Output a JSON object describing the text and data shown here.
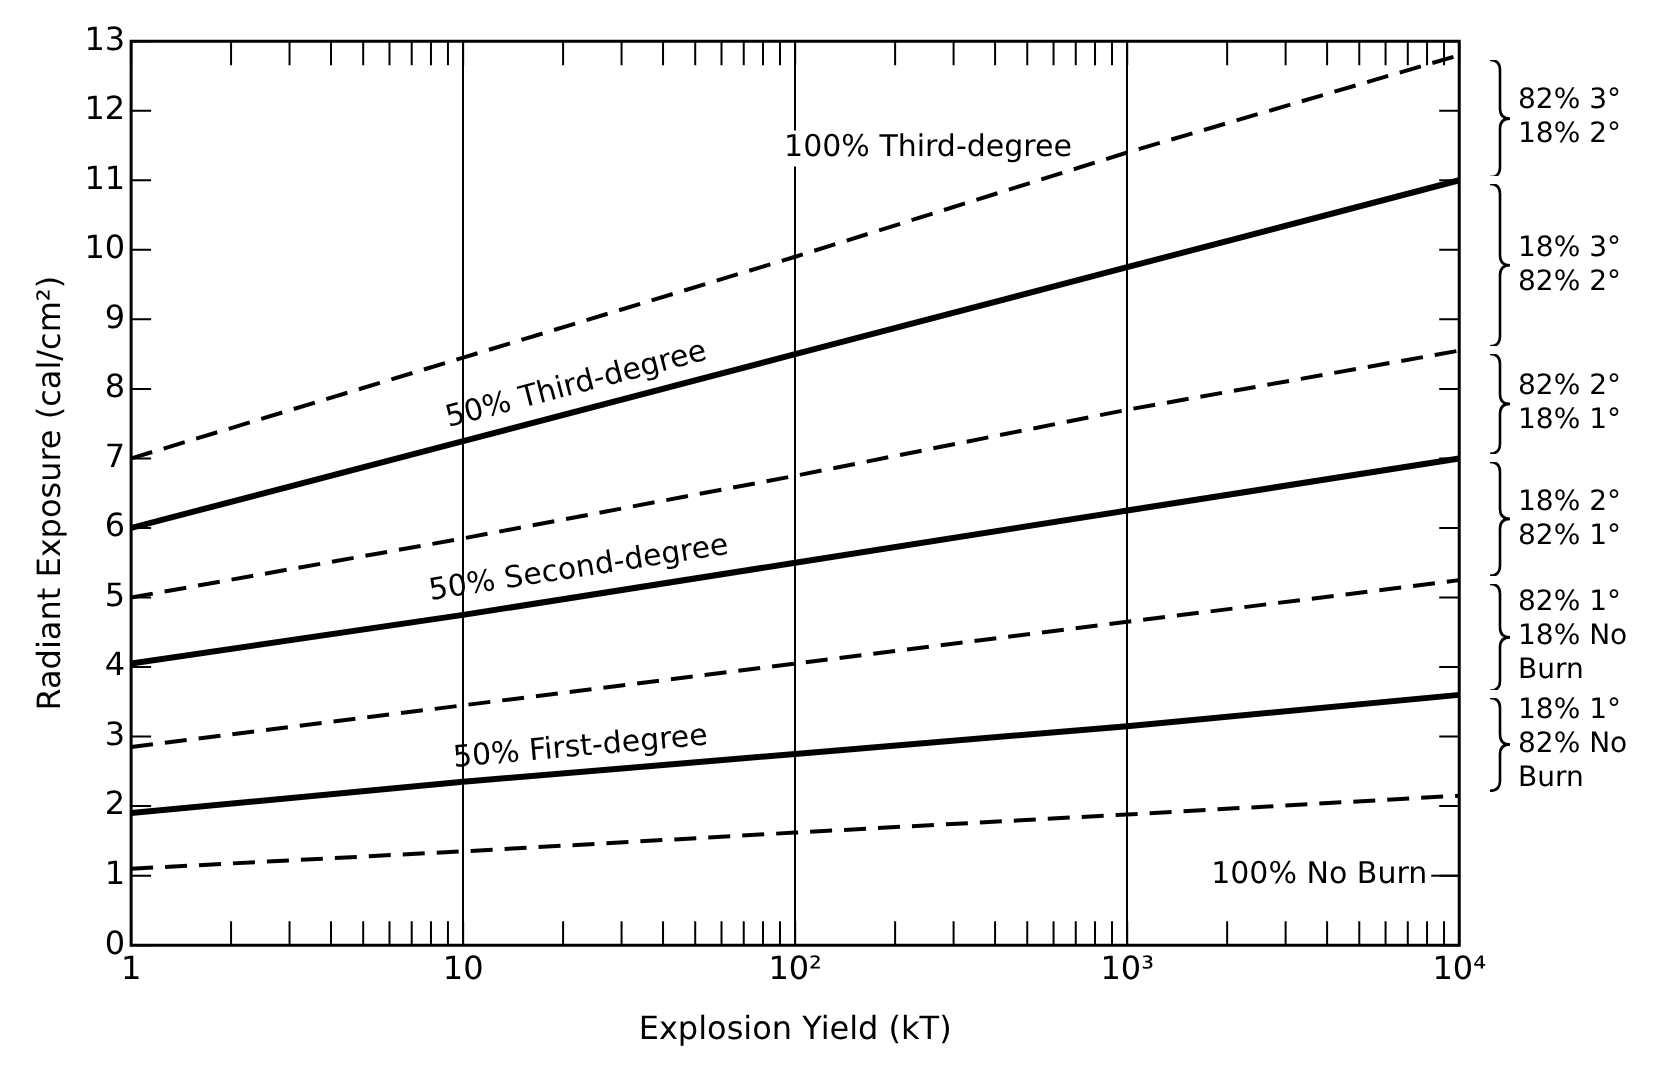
{
  "chart_data": {
    "type": "line",
    "xlabel": "Explosion Yield (kT)",
    "ylabel": "Radiant Exposure (cal/cm²)",
    "x": [
      1,
      10,
      100,
      1000,
      10000
    ],
    "series": [
      {
        "color": "#000000",
        "line_style": "dashed",
        "values": [
          7.0,
          8.45,
          9.9,
          11.4,
          12.8
        ]
      },
      {
        "name": "50% Third-degree",
        "color": "#000000",
        "line_style": "solid",
        "values": [
          6.0,
          7.25,
          8.5,
          9.75,
          11.0
        ]
      },
      {
        "color": "#000000",
        "line_style": "dashed",
        "values": [
          5.0,
          5.85,
          6.75,
          7.7,
          8.55
        ]
      },
      {
        "name": "50% Second-degree",
        "color": "#000000",
        "line_style": "solid",
        "values": [
          4.05,
          4.75,
          5.5,
          6.25,
          7.0
        ]
      },
      {
        "color": "#000000",
        "line_style": "dashed",
        "values": [
          2.85,
          3.45,
          4.05,
          4.65,
          5.25
        ]
      },
      {
        "name": "50% First-degree",
        "color": "#000000",
        "line_style": "solid",
        "values": [
          1.9,
          2.35,
          2.75,
          3.15,
          3.6
        ]
      },
      {
        "color": "#000000",
        "line_style": "dashed",
        "values": [
          1.1,
          1.35,
          1.62,
          1.88,
          2.15
        ]
      }
    ],
    "annotations": [
      "82% 3°\n18% 2°",
      "18% 3°\n82% 2°",
      "82% 2°\n18% 1°",
      "18% 2°\n82% 1°",
      "82% 1°\n18% No\nBurn",
      "18% 1°\n82% No\nBurn",
      "100% Third-degree",
      "100% No Burn"
    ],
    "log": "x",
    "xlim": [
      1,
      10000
    ],
    "ylim": [
      0,
      13
    ],
    "xticks": [
      1,
      {
        "value": 2,
        "label": null
      },
      {
        "value": 3,
        "label": null
      },
      {
        "value": 4,
        "label": null
      },
      {
        "value": 5,
        "label": null
      },
      {
        "value": 6,
        "label": null
      },
      {
        "value": 7,
        "label": null
      },
      {
        "value": 8,
        "label": null
      },
      {
        "value": 9,
        "label": null
      },
      10,
      {
        "value": 20,
        "label": null
      },
      {
        "value": 30,
        "label": null
      },
      {
        "value": 40,
        "label": null
      },
      {
        "value": 50,
        "label": null
      },
      {
        "value": 60,
        "label": null
      },
      {
        "value": 70,
        "label": null
      },
      {
        "value": 80,
        "label": null
      },
      {
        "value": 90,
        "label": null
      },
      {
        "value": 100,
        "label": "10²"
      },
      {
        "value": 200,
        "label": null
      },
      {
        "value": 300,
        "label": null
      },
      {
        "value": 400,
        "label": null
      },
      {
        "value": 500,
        "label": null
      },
      {
        "value": 600,
        "label": null
      },
      {
        "value": 700,
        "label": null
      },
      {
        "value": 800,
        "label": null
      },
      {
        "value": 900,
        "label": null
      },
      {
        "value": 1000,
        "label": "10³"
      },
      {
        "value": 2000,
        "label": null
      },
      {
        "value": 3000,
        "label": null
      },
      {
        "value": 4000,
        "label": null
      },
      {
        "value": 5000,
        "label": null
      },
      {
        "value": 6000,
        "label": null
      },
      {
        "value": 7000,
        "label": null
      },
      {
        "value": 8000,
        "label": null
      },
      {
        "value": 9000,
        "label": null
      },
      {
        "value": 10000,
        "label": "10⁴"
      }
    ],
    "yticks": [
      0,
      1,
      2,
      3,
      4,
      5,
      6,
      7,
      8,
      9,
      10,
      11,
      12,
      13
    ],
    "grid": "x",
    "legend": false,
    "marker": "none"
  }
}
